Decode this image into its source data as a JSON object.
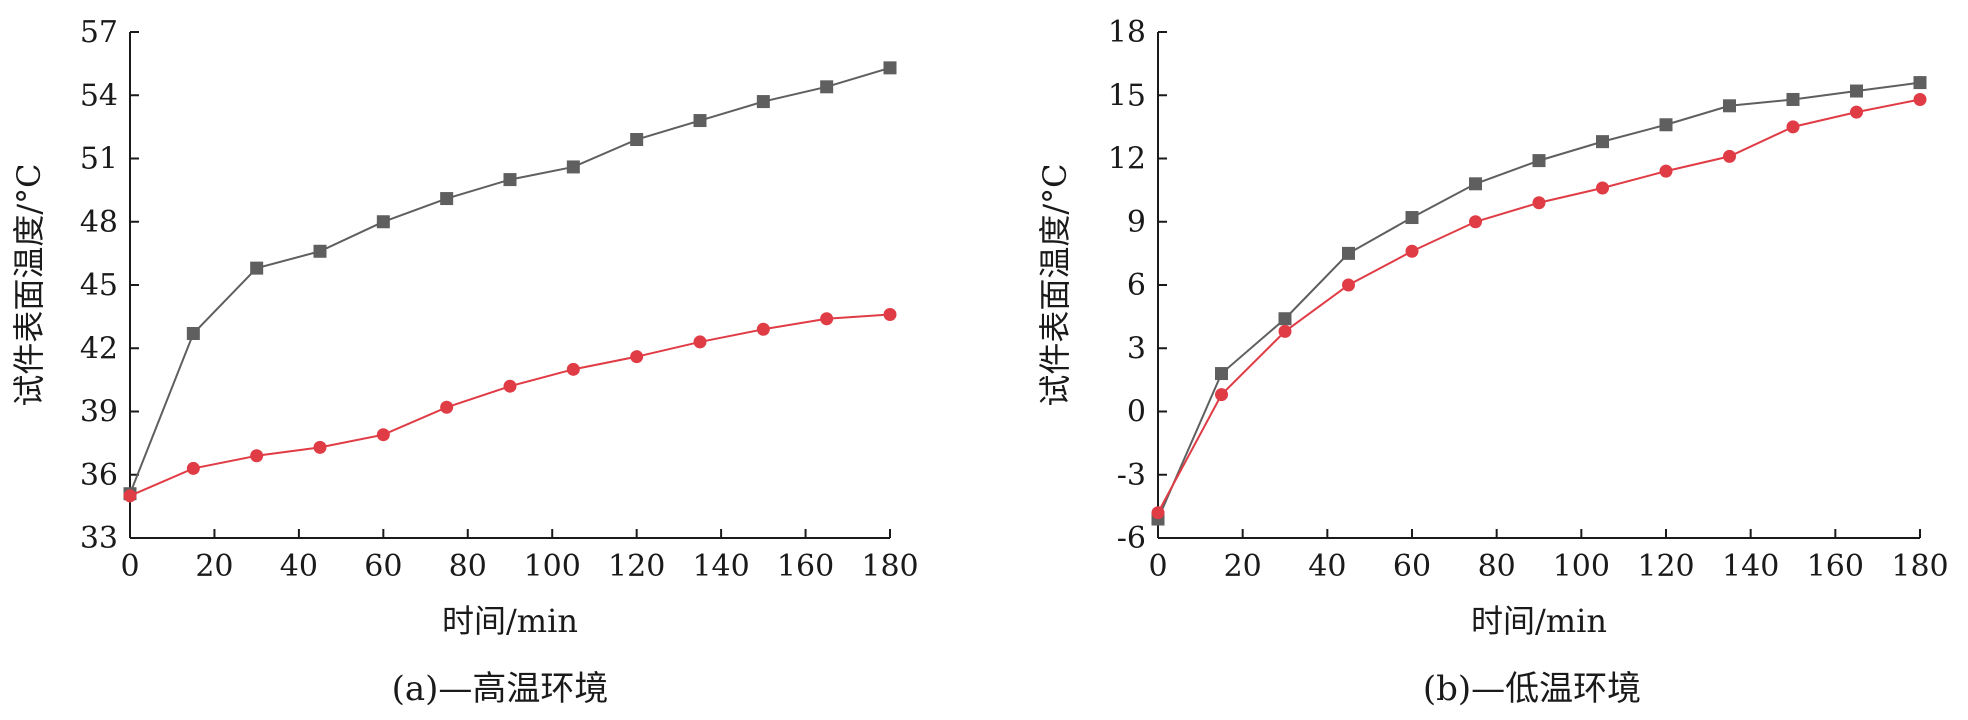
{
  "chart_data": [
    {
      "type": "line",
      "caption": "(a)—高温环境",
      "xlabel": "时间/min",
      "ylabel": "试件表面温度/°C",
      "xlim": [
        0,
        180
      ],
      "ylim": [
        33,
        57
      ],
      "xticks": [
        0,
        20,
        40,
        60,
        80,
        100,
        120,
        140,
        160,
        180
      ],
      "yticks": [
        33,
        36,
        39,
        42,
        45,
        48,
        51,
        54,
        57
      ],
      "x": [
        0,
        15,
        30,
        45,
        60,
        75,
        90,
        105,
        120,
        135,
        150,
        165,
        180
      ],
      "series": [
        {
          "name": "gray-square",
          "color": "#5f5f5f",
          "marker": "square",
          "values": [
            35.1,
            42.7,
            45.8,
            46.6,
            48.0,
            49.1,
            50.0,
            50.6,
            51.9,
            52.8,
            53.7,
            54.4,
            55.3
          ]
        },
        {
          "name": "red-circle",
          "color": "#e03c46",
          "marker": "circle",
          "values": [
            35.0,
            36.3,
            36.9,
            37.3,
            37.9,
            39.2,
            40.2,
            41.0,
            41.6,
            42.3,
            42.9,
            43.4,
            43.6
          ]
        }
      ]
    },
    {
      "type": "line",
      "caption": "(b)—低温环境",
      "xlabel": "时间/min",
      "ylabel": "试件表面温度/°C",
      "xlim": [
        0,
        180
      ],
      "ylim": [
        -6,
        18
      ],
      "xticks": [
        0,
        20,
        40,
        60,
        80,
        100,
        120,
        140,
        160,
        180
      ],
      "yticks": [
        -6,
        -3,
        0,
        3,
        6,
        9,
        12,
        15,
        18
      ],
      "x": [
        0,
        15,
        30,
        45,
        60,
        75,
        90,
        105,
        120,
        135,
        150,
        165,
        180
      ],
      "series": [
        {
          "name": "gray-square",
          "color": "#5f5f5f",
          "marker": "square",
          "values": [
            -5.1,
            1.8,
            4.4,
            7.5,
            9.2,
            10.8,
            11.9,
            12.8,
            13.6,
            14.5,
            14.8,
            15.2,
            15.6
          ]
        },
        {
          "name": "red-circle",
          "color": "#e03c46",
          "marker": "circle",
          "values": [
            -4.8,
            0.8,
            3.8,
            6.0,
            7.6,
            9.0,
            9.9,
            10.6,
            11.4,
            12.1,
            13.5,
            14.2,
            14.8
          ]
        }
      ]
    }
  ]
}
